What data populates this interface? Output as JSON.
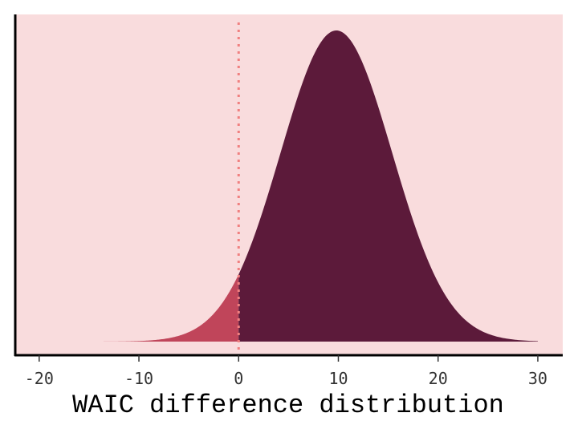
{
  "chart_data": {
    "type": "area",
    "title": "",
    "xlabel": "WAIC difference distribution",
    "ylabel": "",
    "xlim": [
      -22.4,
      32.5
    ],
    "x_ticks": [
      -20,
      -10,
      0,
      10,
      20,
      30
    ],
    "x_tick_labels": [
      "-20",
      "-10",
      "0",
      "10",
      "20",
      "30"
    ],
    "y_ticks_shown": false,
    "grid": false,
    "legend": "none",
    "distribution": {
      "kind": "normal",
      "mean": 9.8,
      "sd": 5.6,
      "x_min": -14,
      "x_max": 30
    },
    "threshold": 0,
    "threshold_line_style": "dotted",
    "regions": [
      {
        "range": [
          -14,
          0
        ],
        "fill": "#c0455a"
      },
      {
        "range": [
          0,
          30
        ],
        "fill": "#5c1a3a"
      }
    ],
    "colors": {
      "panel_background": "#f9dcdd",
      "threshold_line": "#f08080",
      "axis_line": "#000000"
    }
  }
}
